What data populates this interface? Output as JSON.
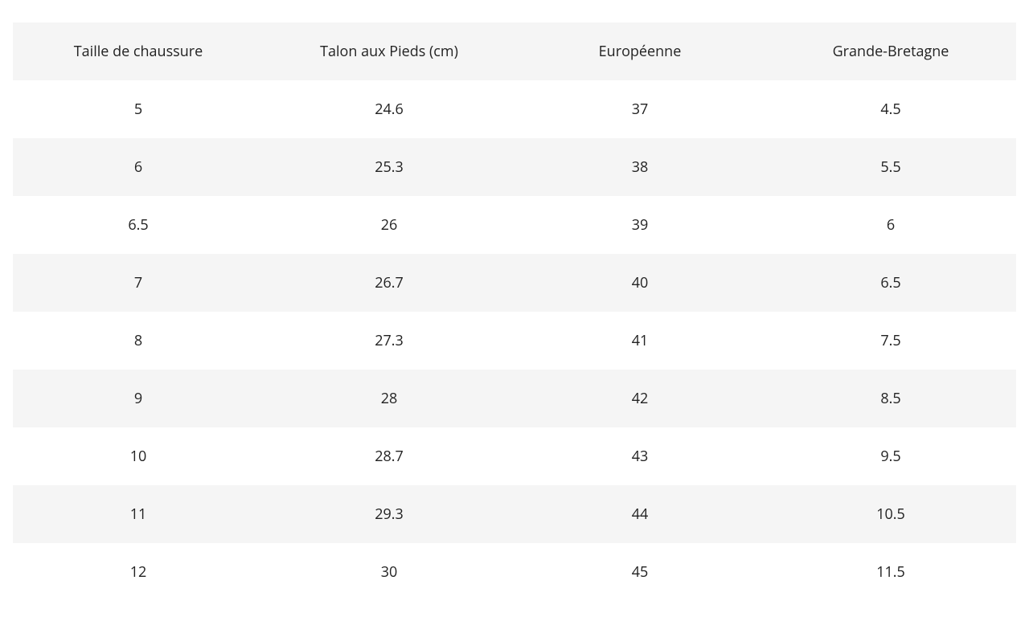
{
  "table": {
    "type": "table",
    "header_bg": "#f5f5f5",
    "row_alt_bg": "#f5f5f5",
    "row_bg": "#ffffff",
    "text_color": "#222222",
    "font_size_pt": 14,
    "columns": [
      "Taille de chaussure",
      "Talon aux Pieds (cm)",
      "Européenne",
      "Grande-Bretagne"
    ],
    "rows": [
      [
        "5",
        "24.6",
        "37",
        "4.5"
      ],
      [
        "6",
        "25.3",
        "38",
        "5.5"
      ],
      [
        "6.5",
        "26",
        "39",
        "6"
      ],
      [
        "7",
        "26.7",
        "40",
        "6.5"
      ],
      [
        "8",
        "27.3",
        "41",
        "7.5"
      ],
      [
        "9",
        "28",
        "42",
        "8.5"
      ],
      [
        "10",
        "28.7",
        "43",
        "9.5"
      ],
      [
        "11",
        "29.3",
        "44",
        "10.5"
      ],
      [
        "12",
        "30",
        "45",
        "11.5"
      ]
    ]
  }
}
